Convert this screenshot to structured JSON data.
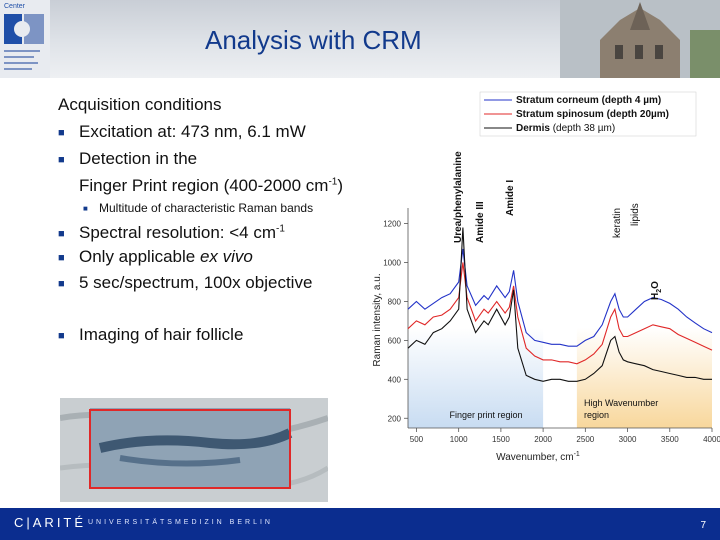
{
  "title": "Analysis with CRM",
  "content": {
    "heading": "Acquisition conditions",
    "bullets": [
      "Excitation at: 473 nm, 6.1 mW",
      "Detection in the",
      "Finger Print region (400-2000 cm",
      "-1",
      ")",
      "Multitude of characteristic Raman bands",
      "Spectral resolution: <4 cm",
      "-1",
      "Only applicable ",
      "ex vivo",
      "5 sec/spectrum, 100x objective",
      "Imaging of hair follicle"
    ]
  },
  "chart_data": {
    "type": "line",
    "title": "",
    "xlabel": "Wavenumber, cm",
    "xlabel_sup": "-1",
    "ylabel": "Raman intensity, a.u.",
    "xlim": [
      400,
      4000
    ],
    "ylim": [
      150,
      1280
    ],
    "xticks": [
      "500",
      "1000",
      "1500",
      "2000",
      "2500",
      "3000",
      "3500",
      "4000"
    ],
    "yticks": [
      "200",
      "400",
      "600",
      "800",
      "1000",
      "1200"
    ],
    "legend": [
      {
        "name": "Stratum corneum",
        "detail": "(depth 4 µm)"
      },
      {
        "name": "Stratum spinosum",
        "detail": "(depth 20µm)"
      },
      {
        "name": "Dermis",
        "detail": "(depth 38 µm)"
      }
    ],
    "annotations": [
      "Urea/phenylalanine",
      "Amide III",
      "Amide I",
      "keratin",
      "lipids",
      "H",
      "2",
      "O"
    ],
    "regions": [
      "Finger print region",
      "High Wavenumber",
      "region"
    ],
    "series": [
      {
        "name": "Stratum corneum",
        "color": "#2333c8",
        "x": [
          400,
          500,
          600,
          700,
          800,
          900,
          1000,
          1050,
          1100,
          1200,
          1300,
          1350,
          1450,
          1550,
          1600,
          1650,
          1700,
          1800,
          1900,
          2000,
          2100,
          2200,
          2300,
          2400,
          2500,
          2600,
          2700,
          2800,
          2850,
          2900,
          2950,
          3000,
          3100,
          3200,
          3300,
          3400,
          3500,
          3600,
          3700,
          3800,
          3900,
          4000
        ],
        "y": [
          760,
          800,
          760,
          790,
          820,
          840,
          900,
          1070,
          880,
          780,
          830,
          810,
          880,
          820,
          850,
          960,
          800,
          640,
          600,
          590,
          580,
          580,
          570,
          570,
          600,
          620,
          680,
          800,
          840,
          760,
          720,
          720,
          760,
          800,
          820,
          810,
          790,
          760,
          720,
          690,
          660,
          640
        ]
      },
      {
        "name": "Stratum spinosum",
        "color": "#e02828",
        "x": [
          400,
          500,
          600,
          700,
          800,
          900,
          1000,
          1050,
          1100,
          1200,
          1300,
          1350,
          1450,
          1550,
          1600,
          1650,
          1700,
          1800,
          1900,
          2000,
          2100,
          2200,
          2300,
          2400,
          2500,
          2600,
          2700,
          2800,
          2850,
          2900,
          2950,
          3000,
          3100,
          3200,
          3300,
          3400,
          3500,
          3600,
          3700,
          3800,
          3900,
          4000
        ],
        "y": [
          660,
          700,
          680,
          720,
          730,
          760,
          820,
          1000,
          820,
          700,
          760,
          740,
          800,
          740,
          770,
          880,
          720,
          560,
          520,
          500,
          500,
          490,
          490,
          480,
          500,
          530,
          580,
          720,
          760,
          660,
          620,
          620,
          640,
          660,
          680,
          670,
          660,
          630,
          610,
          590,
          570,
          550
        ]
      },
      {
        "name": "Dermis",
        "color": "#111111",
        "x": [
          400,
          500,
          600,
          700,
          800,
          900,
          1000,
          1050,
          1100,
          1200,
          1300,
          1350,
          1450,
          1550,
          1600,
          1650,
          1700,
          1800,
          1900,
          2000,
          2100,
          2200,
          2300,
          2400,
          2500,
          2600,
          2700,
          2800,
          2850,
          2900,
          2950,
          3000,
          3100,
          3200,
          3300,
          3400,
          3500,
          3600,
          3700,
          3800,
          3900,
          4000
        ],
        "y": [
          560,
          600,
          580,
          640,
          660,
          700,
          760,
          1180,
          760,
          640,
          700,
          680,
          760,
          680,
          720,
          860,
          560,
          420,
          400,
          390,
          400,
          400,
          390,
          390,
          400,
          430,
          470,
          600,
          620,
          540,
          500,
          490,
          480,
          470,
          450,
          440,
          430,
          420,
          410,
          410,
          400,
          400
        ]
      }
    ]
  }
}
